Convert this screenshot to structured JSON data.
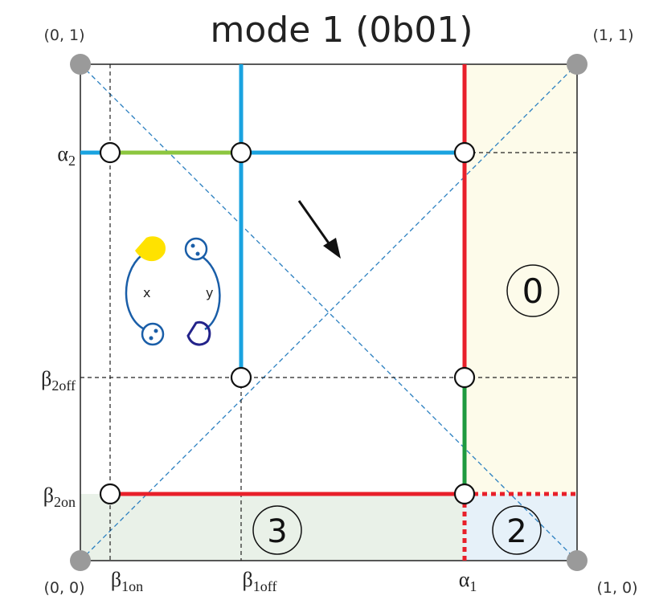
{
  "title": "mode 1 (0b01)",
  "corners": [
    "(0, 1)",
    "(1, 1)",
    "(0, 0)",
    "(1, 0)"
  ],
  "y_labels": [
    {
      "main": "α",
      "sub": "2"
    },
    {
      "main": "β",
      "sub": "2off"
    },
    {
      "main": "β",
      "sub": "2on"
    }
  ],
  "x_labels": [
    {
      "main": "β",
      "sub": "1on"
    },
    {
      "main": "β",
      "sub": "1off"
    },
    {
      "main": "α",
      "sub": "1"
    }
  ],
  "regions": [
    "0",
    "3",
    "2"
  ],
  "icon_labels": [
    "x",
    "y"
  ]
}
